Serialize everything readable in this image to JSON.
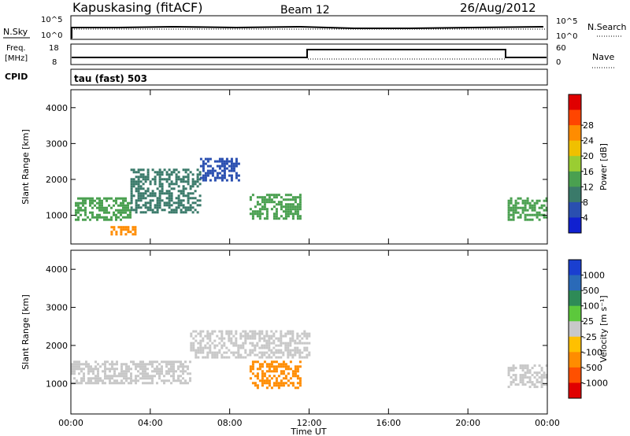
{
  "header": {
    "station": "Kapuskasing (fitACF)",
    "beam": "Beam 12",
    "date": "26/Aug/2012"
  },
  "panels": {
    "nsky_label": "N.Sky",
    "nsearch_label": "N.Search",
    "freq_label_line1": "Freq.",
    "freq_label_line2": "[MHz]",
    "nave_label": "Nave",
    "cpid_label": "CPID",
    "cpid_value": "tau (fast) 503",
    "noise_ticks": [
      "10^5",
      "10^0"
    ],
    "freq_ticks": [
      "18",
      "8"
    ],
    "nave_ticks": [
      "60",
      "0"
    ]
  },
  "chart_data": [
    {
      "type": "heatmap",
      "name": "power",
      "ylabel": "Slant Range [km]",
      "xlabel": "",
      "xlim": [
        0,
        24
      ],
      "ylim": [
        200,
        4500
      ],
      "xticks": [
        "00:00",
        "04:00",
        "08:00",
        "12:00",
        "16:00",
        "20:00",
        "00:00"
      ],
      "yticks": [
        1000,
        2000,
        3000,
        4000
      ],
      "colorbar": {
        "label": "Power [dB]",
        "ticks": [
          4,
          8,
          12,
          16,
          20,
          24,
          28
        ],
        "colors": [
          "#1020d0",
          "#2a4fb0",
          "#3a7a6a",
          "#4aa050",
          "#9acd32",
          "#f0c000",
          "#ff8c00",
          "#ff4500",
          "#e00000"
        ]
      },
      "features": [
        {
          "t_start": 0.2,
          "t_end": 3.0,
          "range_start": 900,
          "range_end": 1500,
          "value": 14
        },
        {
          "t_start": 2.0,
          "t_end": 3.2,
          "range_start": 450,
          "range_end": 700,
          "value": 26
        },
        {
          "t_start": 3.0,
          "t_end": 6.5,
          "range_start": 1100,
          "range_end": 2300,
          "value": 10
        },
        {
          "t_start": 6.5,
          "t_end": 8.5,
          "range_start": 2000,
          "range_end": 2600,
          "value": 6
        },
        {
          "t_start": 9.0,
          "t_end": 11.5,
          "range_start": 900,
          "range_end": 1600,
          "value": 12
        },
        {
          "t_start": 22.0,
          "t_end": 24.0,
          "range_start": 900,
          "range_end": 1500,
          "value": 12
        }
      ]
    },
    {
      "type": "heatmap",
      "name": "velocity",
      "ylabel": "Slant Range [km]",
      "xlabel": "Time UT",
      "xlim": [
        0,
        24
      ],
      "ylim": [
        200,
        4500
      ],
      "xticks": [
        "00:00",
        "04:00",
        "08:00",
        "12:00",
        "16:00",
        "20:00",
        "00:00"
      ],
      "yticks": [
        1000,
        2000,
        3000,
        4000
      ],
      "colorbar": {
        "label": "Velocity [m s⁻¹]",
        "ticks": [
          "1000",
          "500",
          "100",
          "25",
          "-25",
          "-100",
          "-500",
          "-1000"
        ],
        "colors": [
          "#1a3fd0",
          "#2a6ab8",
          "#2e8b57",
          "#5cc83c",
          "#c8c8c8",
          "#ffc000",
          "#ff8c00",
          "#ff5000",
          "#e00000"
        ]
      },
      "features": [
        {
          "t_start": 0.0,
          "t_end": 6.0,
          "range_start": 1000,
          "range_end": 1600,
          "value": 0
        },
        {
          "t_start": 6.0,
          "t_end": 12.0,
          "range_start": 1700,
          "range_end": 2400,
          "value": 0
        },
        {
          "t_start": 9.0,
          "t_end": 11.5,
          "range_start": 900,
          "range_end": 1600,
          "value": -300
        },
        {
          "t_start": 22.0,
          "t_end": 24.0,
          "range_start": 900,
          "range_end": 1500,
          "value": 0
        }
      ]
    }
  ]
}
